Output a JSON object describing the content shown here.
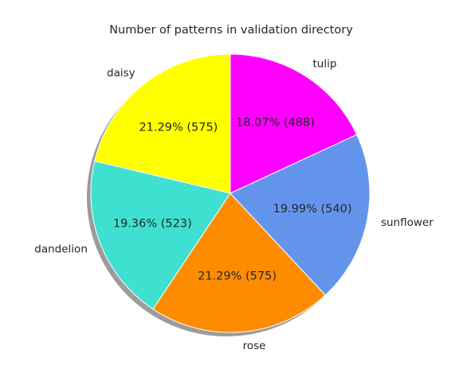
{
  "chart_data": {
    "type": "pie",
    "title": "Number of patterns in validation directory",
    "slices": [
      {
        "label": "daisy",
        "value": 575,
        "pct_text": "21.29%  (575)",
        "color": "#ffff00"
      },
      {
        "label": "dandelion",
        "value": 523,
        "pct_text": "19.36%  (523)",
        "color": "#40e0d0"
      },
      {
        "label": "rose",
        "value": 575,
        "pct_text": "21.29%  (575)",
        "color": "#ff8c00"
      },
      {
        "label": "sunflower",
        "value": 540,
        "pct_text": "19.99%  (540)",
        "color": "#6495ed"
      },
      {
        "label": "tulip",
        "value": 488,
        "pct_text": "18.07%  (488)",
        "color": "#ff00ff"
      }
    ],
    "start_angle_deg": 90,
    "direction": "counterclockwise",
    "shadow": true,
    "legend": "none"
  }
}
